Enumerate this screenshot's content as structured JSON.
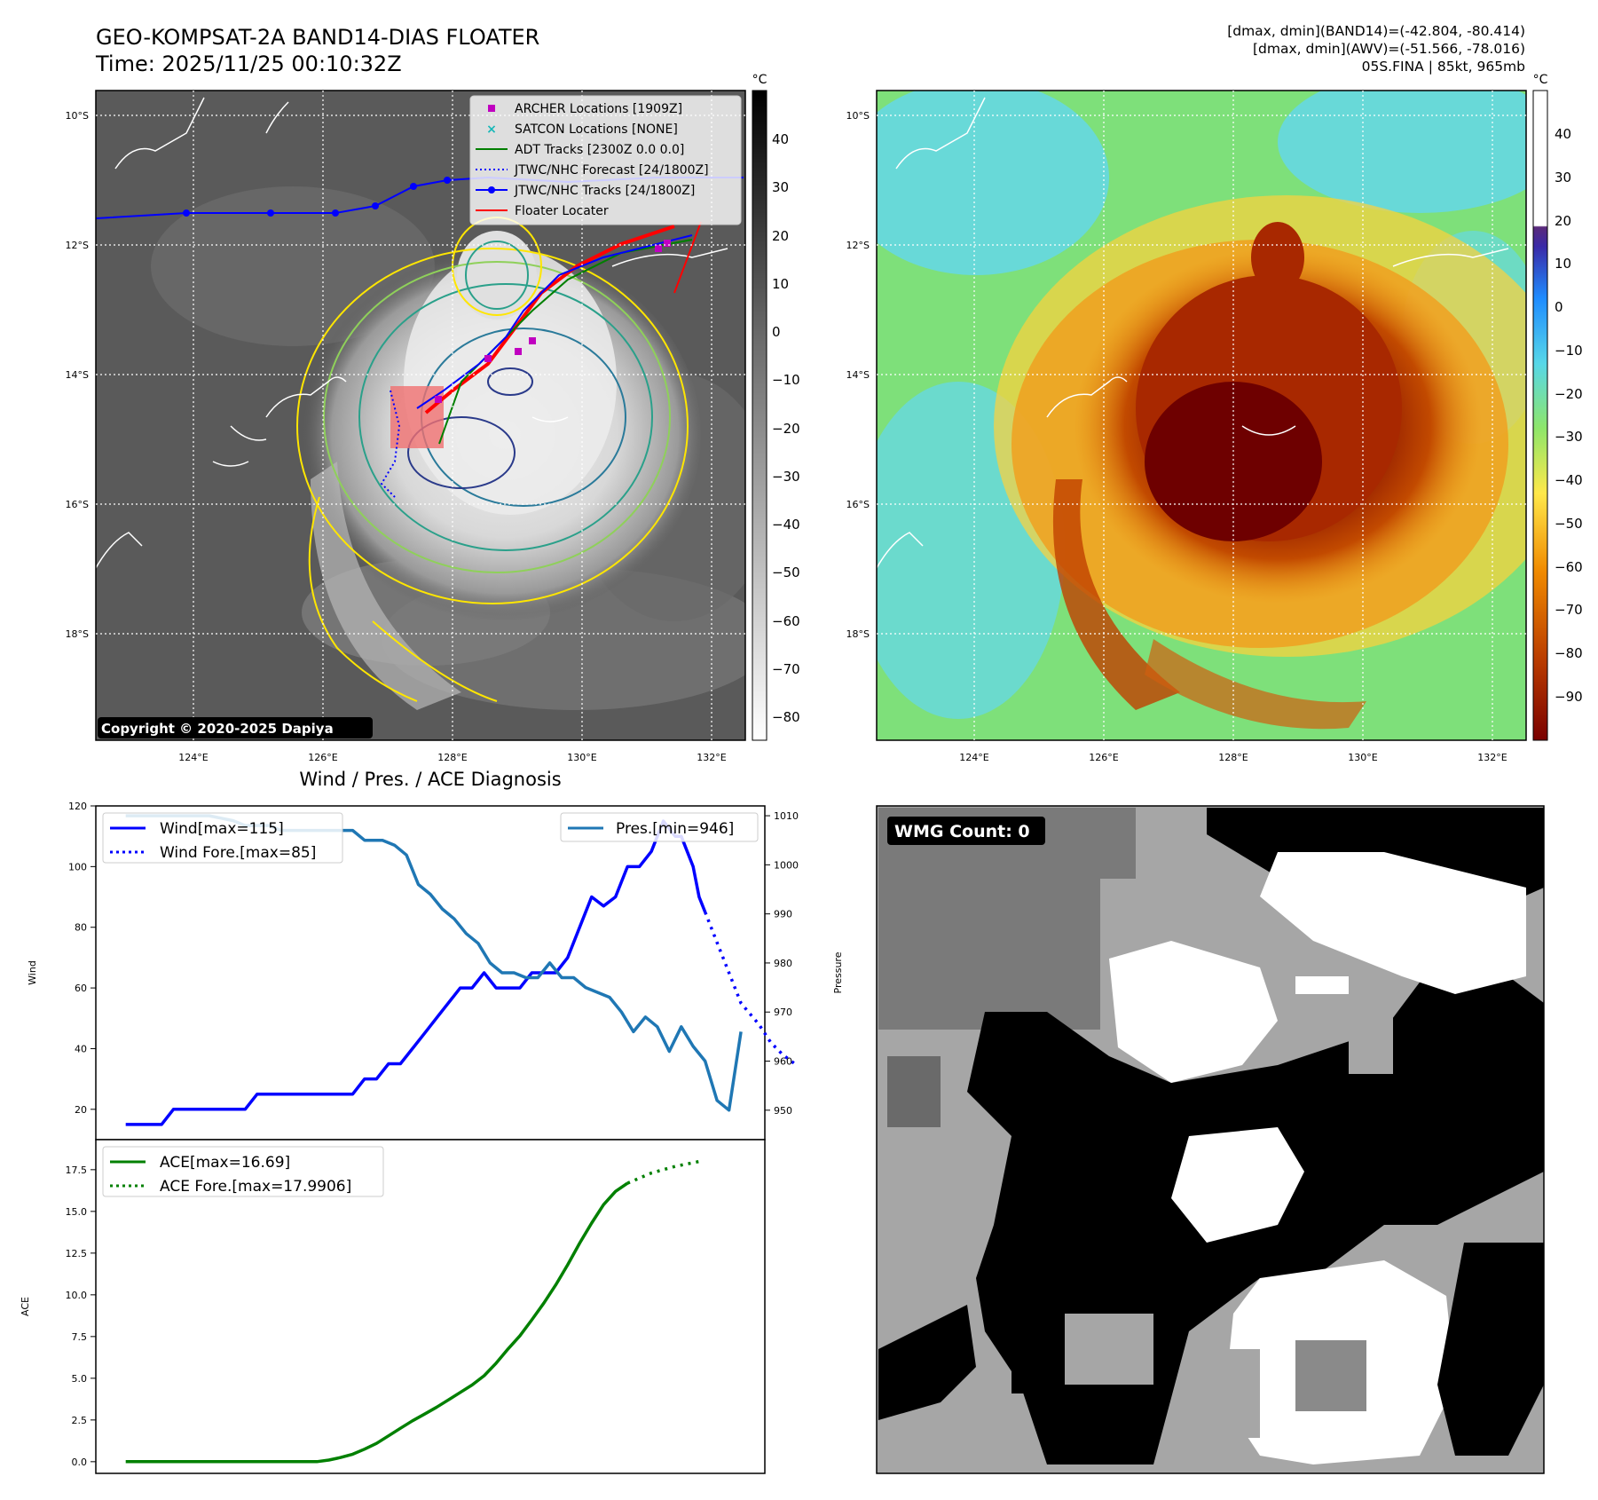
{
  "header": {
    "title_line1": "GEO-KOMPSAT-2A BAND14-DIAS FLOATER",
    "title_line2": "Time: 2025/11/25 00:10:32Z",
    "right_line1": "[dmax, dmin](BAND14)=(-42.804, -80.414)",
    "right_line2": "[dmax, dmin](AWV)=(-51.566, -78.016)",
    "right_line3": "05S.FINA | 85kt, 965mb"
  },
  "map": {
    "lat_labels": [
      "10°S",
      "12°S",
      "14°S",
      "16°S",
      "18°S"
    ],
    "lon_labels": [
      "124°E",
      "126°E",
      "128°E",
      "130°E",
      "132°E"
    ],
    "copyright": "Copyright © 2020-2025 Dapiya",
    "colorbar_unit": "°C",
    "ir_colorbar_ticks": [
      "40",
      "30",
      "20",
      "10",
      "0",
      "−10",
      "−20",
      "−30",
      "−40",
      "−50",
      "−60",
      "−70",
      "−80"
    ],
    "awv_colorbar_ticks": [
      "40",
      "30",
      "20",
      "10",
      "0",
      "−10",
      "−20",
      "−30",
      "−40",
      "−50",
      "−60",
      "−70",
      "−80",
      "−90"
    ],
    "legend": [
      {
        "label": "ARCHER Locations [1909Z]",
        "color": "#c000c0",
        "marker": "square"
      },
      {
        "label": "SATCON Locations [NONE]",
        "color": "#18b8b8",
        "marker": "x"
      },
      {
        "label": "ADT Tracks [2300Z 0.0 0.0]",
        "color": "#007f00",
        "marker": "line"
      },
      {
        "label": "JTWC/NHC Forecast [24/1800Z]",
        "color": "#0000ff",
        "marker": "dotted"
      },
      {
        "label": "JTWC/NHC Tracks [24/1800Z]",
        "color": "#0000ff",
        "marker": "line-dot"
      },
      {
        "label": "Floater Locater",
        "color": "#ff0000",
        "marker": "line"
      }
    ]
  },
  "wmg": {
    "label": "WMG Count: 0"
  },
  "chart_data": [
    {
      "type": "line",
      "title": "Wind / Pres. / ACE Diagnosis",
      "ylabel": "Wind",
      "ylabel_right": "Pressure",
      "ylim": [
        10,
        120
      ],
      "ylim_right": [
        944,
        1012
      ],
      "yticks": [
        20,
        40,
        60,
        80,
        100,
        120
      ],
      "yticks_right": [
        950,
        960,
        970,
        980,
        990,
        1000,
        1010
      ],
      "x": [
        0,
        1,
        2,
        3,
        4,
        5,
        6,
        7,
        8,
        9,
        10,
        11,
        12,
        13,
        14,
        15,
        16,
        17,
        18,
        19,
        20,
        21,
        22,
        23,
        24,
        25,
        26,
        27,
        28,
        29,
        30,
        31,
        32,
        33,
        34,
        35,
        36,
        37,
        38,
        39,
        40,
        41,
        42,
        43,
        44,
        45,
        46,
        47,
        48,
        49,
        50,
        51,
        52,
        53,
        54,
        55,
        56,
        57,
        58,
        59,
        60,
        61,
        62,
        63,
        64,
        65,
        66,
        67,
        68,
        69,
        70,
        71,
        72,
        73,
        74,
        75,
        76,
        77,
        78,
        79,
        80,
        81,
        82,
        83,
        84,
        85,
        86,
        87,
        88,
        89,
        90,
        91,
        92,
        93,
        94,
        95,
        96,
        97,
        98,
        99,
        100,
        101,
        102
      ],
      "xlim": [
        -5,
        107
      ],
      "series": [
        {
          "name": "Wind[max=115]",
          "color": "#0000ff",
          "style": "solid",
          "points": [
            [
              0,
              15
            ],
            [
              6,
              15
            ],
            [
              8,
              20
            ],
            [
              20,
              20
            ],
            [
              22,
              25
            ],
            [
              38,
              25
            ],
            [
              40,
              30
            ],
            [
              42,
              30
            ],
            [
              44,
              35
            ],
            [
              46,
              35
            ],
            [
              48,
              40
            ],
            [
              50,
              45
            ],
            [
              52,
              50
            ],
            [
              54,
              55
            ],
            [
              56,
              60
            ],
            [
              58,
              60
            ],
            [
              60,
              65
            ],
            [
              62,
              60
            ],
            [
              64,
              60
            ],
            [
              66,
              60
            ],
            [
              68,
              65
            ],
            [
              72,
              65
            ],
            [
              74,
              70
            ],
            [
              76,
              80
            ],
            [
              78,
              90
            ],
            [
              80,
              87
            ],
            [
              82,
              90
            ],
            [
              84,
              100
            ],
            [
              86,
              100
            ],
            [
              88,
              105
            ],
            [
              90,
              115
            ],
            [
              92,
              110
            ],
            [
              93,
              110
            ],
            [
              94,
              105
            ],
            [
              95,
              100
            ],
            [
              96,
              90
            ],
            [
              97,
              85
            ]
          ]
        },
        {
          "name": "Wind Fore.[max=85]",
          "color": "#0000ff",
          "style": "dotted",
          "points": [
            [
              97,
              85
            ],
            [
              99,
              75
            ],
            [
              101,
              65
            ],
            [
              103,
              55
            ],
            [
              106,
              48
            ],
            [
              108,
              42
            ],
            [
              110,
              38
            ],
            [
              112,
              35
            ]
          ]
        },
        {
          "name": "Pres.[min=946]",
          "color": "#1f77b4",
          "style": "solid",
          "axis": "right",
          "points": [
            [
              0,
              1010
            ],
            [
              14,
              1010
            ],
            [
              18,
              1009
            ],
            [
              20,
              1008
            ],
            [
              24,
              1008
            ],
            [
              26,
              1007
            ],
            [
              29,
              1007
            ],
            [
              38,
              1007
            ],
            [
              40,
              1005
            ],
            [
              43,
              1005
            ],
            [
              45,
              1004
            ],
            [
              47,
              1002
            ],
            [
              49,
              996
            ],
            [
              51,
              994
            ],
            [
              53,
              991
            ],
            [
              55,
              989
            ],
            [
              57,
              986
            ],
            [
              59,
              984
            ],
            [
              61,
              980
            ],
            [
              63,
              978
            ],
            [
              65,
              978
            ],
            [
              67,
              977
            ],
            [
              69,
              977
            ],
            [
              71,
              980
            ],
            [
              73,
              977
            ],
            [
              75,
              977
            ],
            [
              77,
              975
            ],
            [
              79,
              974
            ],
            [
              81,
              973
            ],
            [
              83,
              970
            ],
            [
              85,
              966
            ],
            [
              87,
              969
            ],
            [
              89,
              967
            ],
            [
              91,
              962
            ],
            [
              93,
              967
            ],
            [
              95,
              963
            ],
            [
              97,
              960
            ],
            [
              99,
              952
            ],
            [
              101,
              950
            ],
            [
              103,
              966
            ]
          ]
        }
      ]
    },
    {
      "type": "line",
      "ylabel": "ACE",
      "ylim": [
        -0.7,
        19.3
      ],
      "yticks": [
        0.0,
        2.5,
        5.0,
        7.5,
        10.0,
        12.5,
        15.0,
        17.5
      ],
      "series": [
        {
          "name": "ACE[max=16.69]",
          "color": "#008000",
          "style": "solid",
          "points": [
            [
              0,
              0
            ],
            [
              32,
              0
            ],
            [
              34,
              0.1
            ],
            [
              36,
              0.25
            ],
            [
              38,
              0.45
            ],
            [
              40,
              0.75
            ],
            [
              42,
              1.1
            ],
            [
              44,
              1.55
            ],
            [
              46,
              2.0
            ],
            [
              48,
              2.45
            ],
            [
              50,
              2.85
            ],
            [
              52,
              3.25
            ],
            [
              54,
              3.7
            ],
            [
              56,
              4.15
            ],
            [
              58,
              4.6
            ],
            [
              60,
              5.15
            ],
            [
              62,
              5.9
            ],
            [
              64,
              6.75
            ],
            [
              66,
              7.55
            ],
            [
              68,
              8.5
            ],
            [
              70,
              9.5
            ],
            [
              72,
              10.6
            ],
            [
              74,
              11.8
            ],
            [
              76,
              13.1
            ],
            [
              78,
              14.3
            ],
            [
              80,
              15.4
            ],
            [
              82,
              16.2
            ],
            [
              84,
              16.69
            ]
          ]
        },
        {
          "name": "ACE Fore.[max=17.9906]",
          "color": "#008000",
          "style": "dotted",
          "points": [
            [
              84,
              16.69
            ],
            [
              88,
              17.3
            ],
            [
              92,
              17.7
            ],
            [
              96,
              17.99
            ]
          ]
        }
      ]
    }
  ]
}
